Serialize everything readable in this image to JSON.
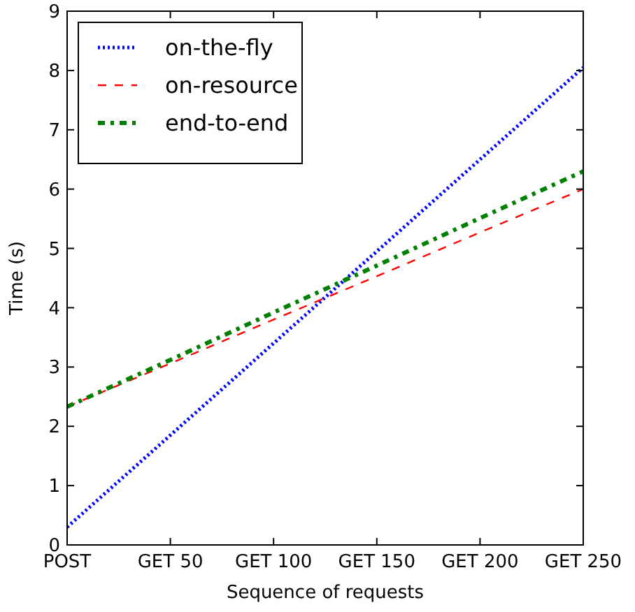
{
  "chart_data": {
    "type": "line",
    "xlabel": "Sequence of requests",
    "ylabel": "Time (s)",
    "categories": [
      "POST",
      "GET 50",
      "GET 100",
      "GET 150",
      "GET 200",
      "GET 250"
    ],
    "series": [
      {
        "name": "on-the-fly",
        "color": "#0000ff",
        "values": [
          0.3,
          1.85,
          3.4,
          4.95,
          6.5,
          8.05
        ],
        "line_style": "dotted"
      },
      {
        "name": "on-resource",
        "color": "#ff0000",
        "values": [
          2.33,
          3.06,
          3.8,
          4.53,
          5.27,
          6.0
        ],
        "line_style": "dashed"
      },
      {
        "name": "end-to-end",
        "color": "#008000",
        "values": [
          2.33,
          3.12,
          3.92,
          4.71,
          5.51,
          6.3
        ],
        "line_style": "dashdot"
      }
    ],
    "ylim": [
      0,
      9
    ],
    "yticks": [
      0,
      1,
      2,
      3,
      4,
      5,
      6,
      7,
      8,
      9
    ],
    "grid": false,
    "legend": "top left",
    "marker": "none"
  }
}
